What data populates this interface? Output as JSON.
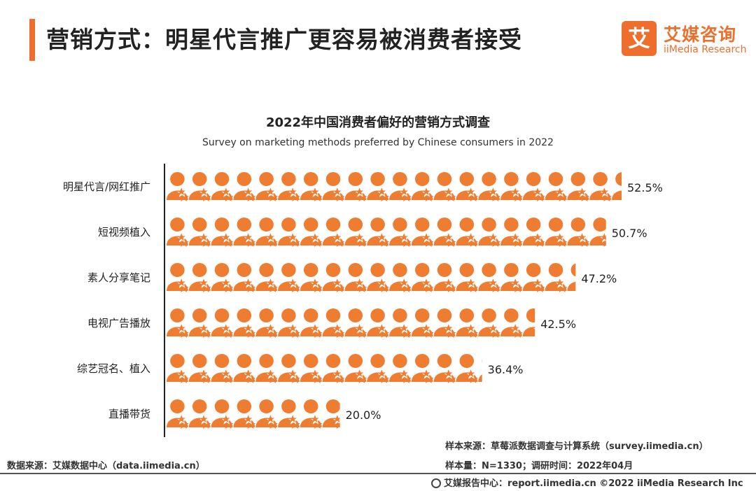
{
  "header": {
    "title": "营销方式：明星代言推广更容易被消费者接受",
    "logo_mark": "艾",
    "logo_cn": "艾媒咨询",
    "logo_en": "iiMedia Research"
  },
  "chart_data": {
    "type": "bar",
    "title": "2022年中国消费者偏好的营销方式调查",
    "subtitle": "Survey on marketing methods preferred by Chinese consumers in 2022",
    "categories": [
      "明星代言/网红推广",
      "短视频植入",
      "素人分享笔记",
      "电视广告播放",
      "综艺冠名、植入",
      "直播带货"
    ],
    "values": [
      52.5,
      50.7,
      47.2,
      42.5,
      36.4,
      20.0
    ],
    "value_labels": [
      "52.5%",
      "50.7%",
      "47.2%",
      "42.5%",
      "36.4%",
      "20.0%"
    ],
    "unit": "%",
    "bar_style": "pictograph-person-icons",
    "color": "#ee7d31",
    "grid": false
  },
  "footer": {
    "left_source": "数据来源：艾媒数据中心（data.iimedia.cn）",
    "sample_source": "样本来源：草莓派数据调查与计算系统（survey.iimedia.cn）",
    "sample_size": "样本量：N=1330；调研时间：2022年04月",
    "copyright": "艾媒报告中心：report.iimedia.cn   ©2022  iiMedia Research  Inc"
  }
}
